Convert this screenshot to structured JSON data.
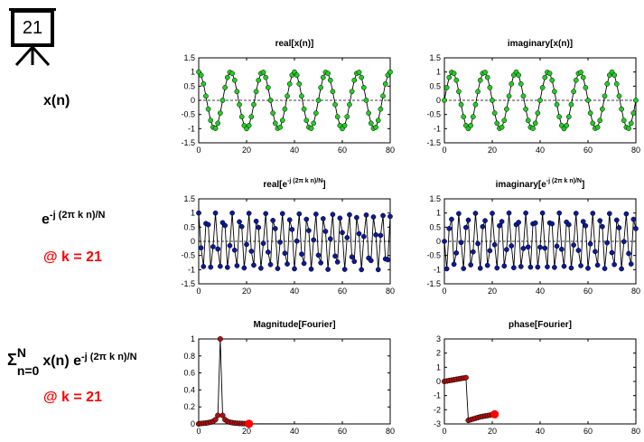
{
  "slide_number": "21",
  "rows": [
    {
      "label": "x(n)"
    },
    {
      "label_base": "e",
      "label_sup": "-j (2π k n)/N",
      "note": "@ k = 21"
    },
    {
      "label_sigma": "Σ",
      "label_sigma_sup": "N",
      "label_sigma_sub": "n=0",
      "label_mid": "x(n) e",
      "label_sup": "-j (2π k n)/N",
      "note": "@ k = 21"
    }
  ],
  "titles": {
    "p1": "real[x(n)]",
    "p2": "imaginary[x(n)]",
    "p3_a": "real[e",
    "p3_b": "-j (2π k n)/N",
    "p3_c": "]",
    "p4_a": "imaginary[e",
    "p4_b": "-j (2π k n)/N",
    "p4_c": "]",
    "p5": "Magnitude[Fourier]",
    "p6": "phase[Fourier]"
  },
  "colors": {
    "signal": "#22cc22",
    "kernel": "#0a1a99",
    "spectrum": "#aa1111",
    "highlight": "#ff0000"
  },
  "chart_data": [
    {
      "id": "p1",
      "type": "line",
      "title": "real[x(n)]",
      "x": [
        0,
        1,
        2,
        3,
        4,
        5,
        6,
        7,
        8,
        9,
        10,
        11,
        12,
        13,
        14,
        15,
        16,
        17,
        18,
        19,
        20,
        21,
        22,
        23,
        24,
        25,
        26,
        27,
        28,
        29,
        30,
        31,
        32,
        33,
        34,
        35,
        36,
        37,
        38,
        39,
        40,
        41,
        42,
        43,
        44,
        45,
        46,
        47,
        48,
        49,
        50,
        51,
        52,
        53,
        54,
        55,
        56,
        57,
        58,
        59,
        60,
        61,
        62,
        63,
        64,
        65,
        66,
        67,
        68,
        69,
        70,
        71,
        72,
        73,
        74,
        75,
        76,
        77,
        78,
        79,
        80
      ],
      "values": [
        1,
        0.89,
        0.58,
        0.15,
        -0.31,
        -0.71,
        -0.95,
        -0.99,
        -0.81,
        -0.45,
        0,
        0.45,
        0.81,
        0.99,
        0.95,
        0.71,
        0.31,
        -0.15,
        -0.58,
        -0.89,
        -1,
        -0.89,
        -0.58,
        -0.15,
        0.31,
        0.71,
        0.95,
        0.99,
        0.81,
        0.45,
        0,
        -0.45,
        -0.81,
        -0.99,
        -0.95,
        -0.71,
        -0.31,
        0.15,
        0.58,
        0.89,
        1,
        0.89,
        0.58,
        0.15,
        -0.31,
        -0.71,
        -0.95,
        -0.99,
        -0.81,
        -0.45,
        0,
        0.45,
        0.81,
        0.99,
        0.95,
        0.71,
        0.31,
        -0.15,
        -0.58,
        -0.89,
        -1,
        -0.89,
        -0.58,
        -0.15,
        0.31,
        0.71,
        0.95,
        0.99,
        0.81,
        0.45,
        0,
        -0.45,
        -0.81,
        -0.99,
        -0.95,
        -0.71,
        -0.31,
        0.15,
        0.58,
        0.89,
        1
      ],
      "xlim": [
        0,
        80
      ],
      "ylim": [
        -1.5,
        1.5
      ],
      "xticks": [
        0,
        20,
        40,
        60,
        80
      ],
      "yticks": [
        1.5,
        1,
        0.5,
        0,
        -0.5,
        -1,
        -1.5
      ]
    },
    {
      "id": "p2",
      "type": "line",
      "title": "imaginary[x(n)]",
      "x": [
        0,
        1,
        2,
        3,
        4,
        5,
        6,
        7,
        8,
        9,
        10,
        11,
        12,
        13,
        14,
        15,
        16,
        17,
        18,
        19,
        20,
        21,
        22,
        23,
        24,
        25,
        26,
        27,
        28,
        29,
        30,
        31,
        32,
        33,
        34,
        35,
        36,
        37,
        38,
        39,
        40,
        41,
        42,
        43,
        44,
        45,
        46,
        47,
        48,
        49,
        50,
        51,
        52,
        53,
        54,
        55,
        56,
        57,
        58,
        59,
        60,
        61,
        62,
        63,
        64,
        65,
        66,
        67,
        68,
        69,
        70,
        71,
        72,
        73,
        74,
        75,
        76,
        77,
        78,
        79,
        80
      ],
      "values": [
        0,
        0.45,
        0.81,
        0.99,
        0.95,
        0.71,
        0.31,
        -0.15,
        -0.58,
        -0.89,
        -1,
        -0.89,
        -0.58,
        -0.15,
        0.31,
        0.71,
        0.95,
        0.99,
        0.81,
        0.45,
        0,
        -0.45,
        -0.81,
        -0.99,
        -0.95,
        -0.71,
        -0.31,
        0.15,
        0.58,
        0.89,
        1,
        0.89,
        0.58,
        0.15,
        -0.31,
        -0.71,
        -0.95,
        -0.99,
        -0.81,
        -0.45,
        0,
        0.45,
        0.81,
        0.99,
        0.95,
        0.71,
        0.31,
        -0.15,
        -0.58,
        -0.89,
        -1,
        -0.89,
        -0.58,
        -0.15,
        0.31,
        0.71,
        0.95,
        0.99,
        0.81,
        0.45,
        0,
        -0.45,
        -0.81,
        -0.99,
        -0.95,
        -0.71,
        -0.31,
        0.15,
        0.58,
        0.89,
        1,
        0.89,
        0.58,
        0.15,
        -0.31,
        -0.71,
        -0.95,
        -0.99,
        -0.81,
        -0.45,
        0
      ],
      "xlim": [
        0,
        80
      ],
      "ylim": [
        -1.5,
        1.5
      ],
      "xticks": [
        0,
        20,
        40,
        60,
        80
      ],
      "yticks": [
        1.5,
        1,
        0.5,
        0,
        -0.5,
        -1,
        -1.5
      ]
    },
    {
      "id": "p3",
      "type": "line",
      "title": "real[e^-j (2π k n)/N]",
      "x": [
        0,
        1,
        2,
        3,
        4,
        5,
        6,
        7,
        8,
        9,
        10,
        11,
        12,
        13,
        14,
        15,
        16,
        17,
        18,
        19,
        20,
        21,
        22,
        23,
        24,
        25,
        26,
        27,
        28,
        29,
        30,
        31,
        32,
        33,
        34,
        35,
        36,
        37,
        38,
        39,
        40,
        41,
        42,
        43,
        44,
        45,
        46,
        47,
        48,
        49,
        50,
        51,
        52,
        53,
        54,
        55,
        56,
        57,
        58,
        59,
        60,
        61,
        62,
        63,
        64,
        65,
        66,
        67,
        68,
        69,
        70,
        71,
        72,
        73,
        74,
        75,
        76,
        77,
        78,
        79,
        80
      ],
      "values": [
        1,
        -0.23,
        -0.89,
        0.63,
        0.59,
        -0.91,
        -0.19,
        1,
        -0.27,
        -0.88,
        0.66,
        0.56,
        -0.92,
        -0.15,
        1,
        -0.31,
        -0.86,
        0.69,
        0.52,
        -0.94,
        -0.11,
        0.99,
        -0.35,
        -0.84,
        0.71,
        0.49,
        -0.95,
        -0.07,
        0.98,
        -0.38,
        -0.82,
        0.74,
        0.45,
        -0.96,
        -0.03,
        0.98,
        -0.42,
        -0.8,
        0.76,
        0.42,
        -0.97,
        0.01,
        0.97,
        -0.45,
        -0.78,
        0.78,
        0.38,
        -0.98,
        0.05,
        0.96,
        -0.49,
        -0.76,
        0.8,
        0.35,
        -0.99,
        0.09,
        0.95,
        -0.52,
        -0.73,
        0.82,
        0.31,
        -0.99,
        0.13,
        0.94,
        -0.55,
        -0.71,
        0.84,
        0.27,
        -1,
        0.17,
        0.93,
        -0.59,
        -0.68,
        0.86,
        0.23,
        -1,
        0.21,
        0.91,
        -0.62,
        -0.65,
        0.88
      ],
      "xlim": [
        0,
        80
      ],
      "ylim": [
        -1.5,
        1.5
      ],
      "xticks": [
        0,
        20,
        40,
        60,
        80
      ],
      "yticks": [
        1.5,
        1,
        0.5,
        0,
        -0.5,
        -1,
        -1.5
      ]
    },
    {
      "id": "p4",
      "type": "line",
      "title": "imaginary[e^-j (2π k n)/N]",
      "x": [
        0,
        1,
        2,
        3,
        4,
        5,
        6,
        7,
        8,
        9,
        10,
        11,
        12,
        13,
        14,
        15,
        16,
        17,
        18,
        19,
        20,
        21,
        22,
        23,
        24,
        25,
        26,
        27,
        28,
        29,
        30,
        31,
        32,
        33,
        34,
        35,
        36,
        37,
        38,
        39,
        40,
        41,
        42,
        43,
        44,
        45,
        46,
        47,
        48,
        49,
        50,
        51,
        52,
        53,
        54,
        55,
        56,
        57,
        58,
        59,
        60,
        61,
        62,
        63,
        64,
        65,
        66,
        67,
        68,
        69,
        70,
        71,
        72,
        73,
        74,
        75,
        76,
        77,
        78,
        79,
        80
      ],
      "values": [
        0,
        -0.97,
        0.45,
        0.78,
        -0.81,
        -0.41,
        0.98,
        -0.04,
        -0.96,
        0.49,
        0.75,
        -0.83,
        -0.37,
        0.99,
        -0.08,
        -0.95,
        0.52,
        0.73,
        -0.85,
        -0.33,
        0.99,
        -0.12,
        -0.94,
        0.55,
        0.7,
        -0.87,
        -0.29,
        1,
        -0.16,
        -0.93,
        0.59,
        0.67,
        -0.89,
        -0.25,
        1,
        -0.2,
        -0.91,
        0.62,
        0.65,
        -0.91,
        -0.21,
        1,
        -0.24,
        -0.9,
        0.65,
        0.62,
        -0.92,
        -0.17,
        1,
        -0.28,
        -0.88,
        0.68,
        0.59,
        -0.94,
        -0.13,
        0.99,
        -0.32,
        -0.86,
        0.7,
        0.55,
        -0.95,
        -0.09,
        0.99,
        -0.36,
        -0.84,
        0.73,
        0.52,
        -0.96,
        -0.05,
        0.98,
        -0.4,
        -0.82,
        0.75,
        0.48,
        -0.97,
        -0.01,
        0.97,
        -0.43,
        -0.8,
        0.78,
        0.45
      ],
      "xlim": [
        0,
        80
      ],
      "ylim": [
        -1.5,
        1.5
      ],
      "xticks": [
        0,
        20,
        40,
        60,
        80
      ],
      "yticks": [
        1.5,
        1,
        0.5,
        0,
        -0.5,
        -1,
        -1.5
      ]
    },
    {
      "id": "p5",
      "type": "line",
      "title": "Magnitude[Fourier]",
      "x": [
        0,
        1,
        2,
        3,
        4,
        5,
        6,
        7,
        8,
        9,
        10,
        11,
        12,
        13,
        14,
        15,
        16,
        17,
        18,
        19,
        20,
        21
      ],
      "values": [
        0,
        0.005,
        0.008,
        0.01,
        0.015,
        0.02,
        0.03,
        0.05,
        0.1,
        1,
        0.1,
        0.05,
        0.03,
        0.02,
        0.015,
        0.01,
        0.008,
        0.006,
        0.005,
        0.004,
        0.003,
        0.002
      ],
      "highlight_index": 21,
      "tail_x": [
        21,
        80
      ],
      "tail_values": [
        0.002,
        0
      ],
      "xlim": [
        0,
        80
      ],
      "ylim": [
        0,
        1
      ],
      "xticks": [
        0,
        20,
        40,
        60,
        80
      ],
      "yticks": [
        1,
        0.8,
        0.6,
        0.4,
        0.2,
        0
      ]
    },
    {
      "id": "p6",
      "type": "line",
      "title": "phase[Fourier]",
      "x": [
        0,
        1,
        2,
        3,
        4,
        5,
        6,
        7,
        8,
        9,
        10,
        11,
        12,
        13,
        14,
        15,
        16,
        17,
        18,
        19,
        20,
        21
      ],
      "values": [
        0,
        0.03,
        0.06,
        0.09,
        0.12,
        0.15,
        0.18,
        0.21,
        0.24,
        0.27,
        -2.75,
        -2.7,
        -2.65,
        -2.6,
        -2.55,
        -2.5,
        -2.47,
        -2.44,
        -2.41,
        -2.38,
        -2.35,
        -2.32
      ],
      "highlight_index": 21,
      "xlim": [
        0,
        80
      ],
      "ylim": [
        -3,
        3
      ],
      "xticks": [
        0,
        20,
        40,
        60,
        80
      ],
      "yticks": [
        3,
        2,
        1,
        0,
        -1,
        -2,
        -3
      ]
    }
  ]
}
